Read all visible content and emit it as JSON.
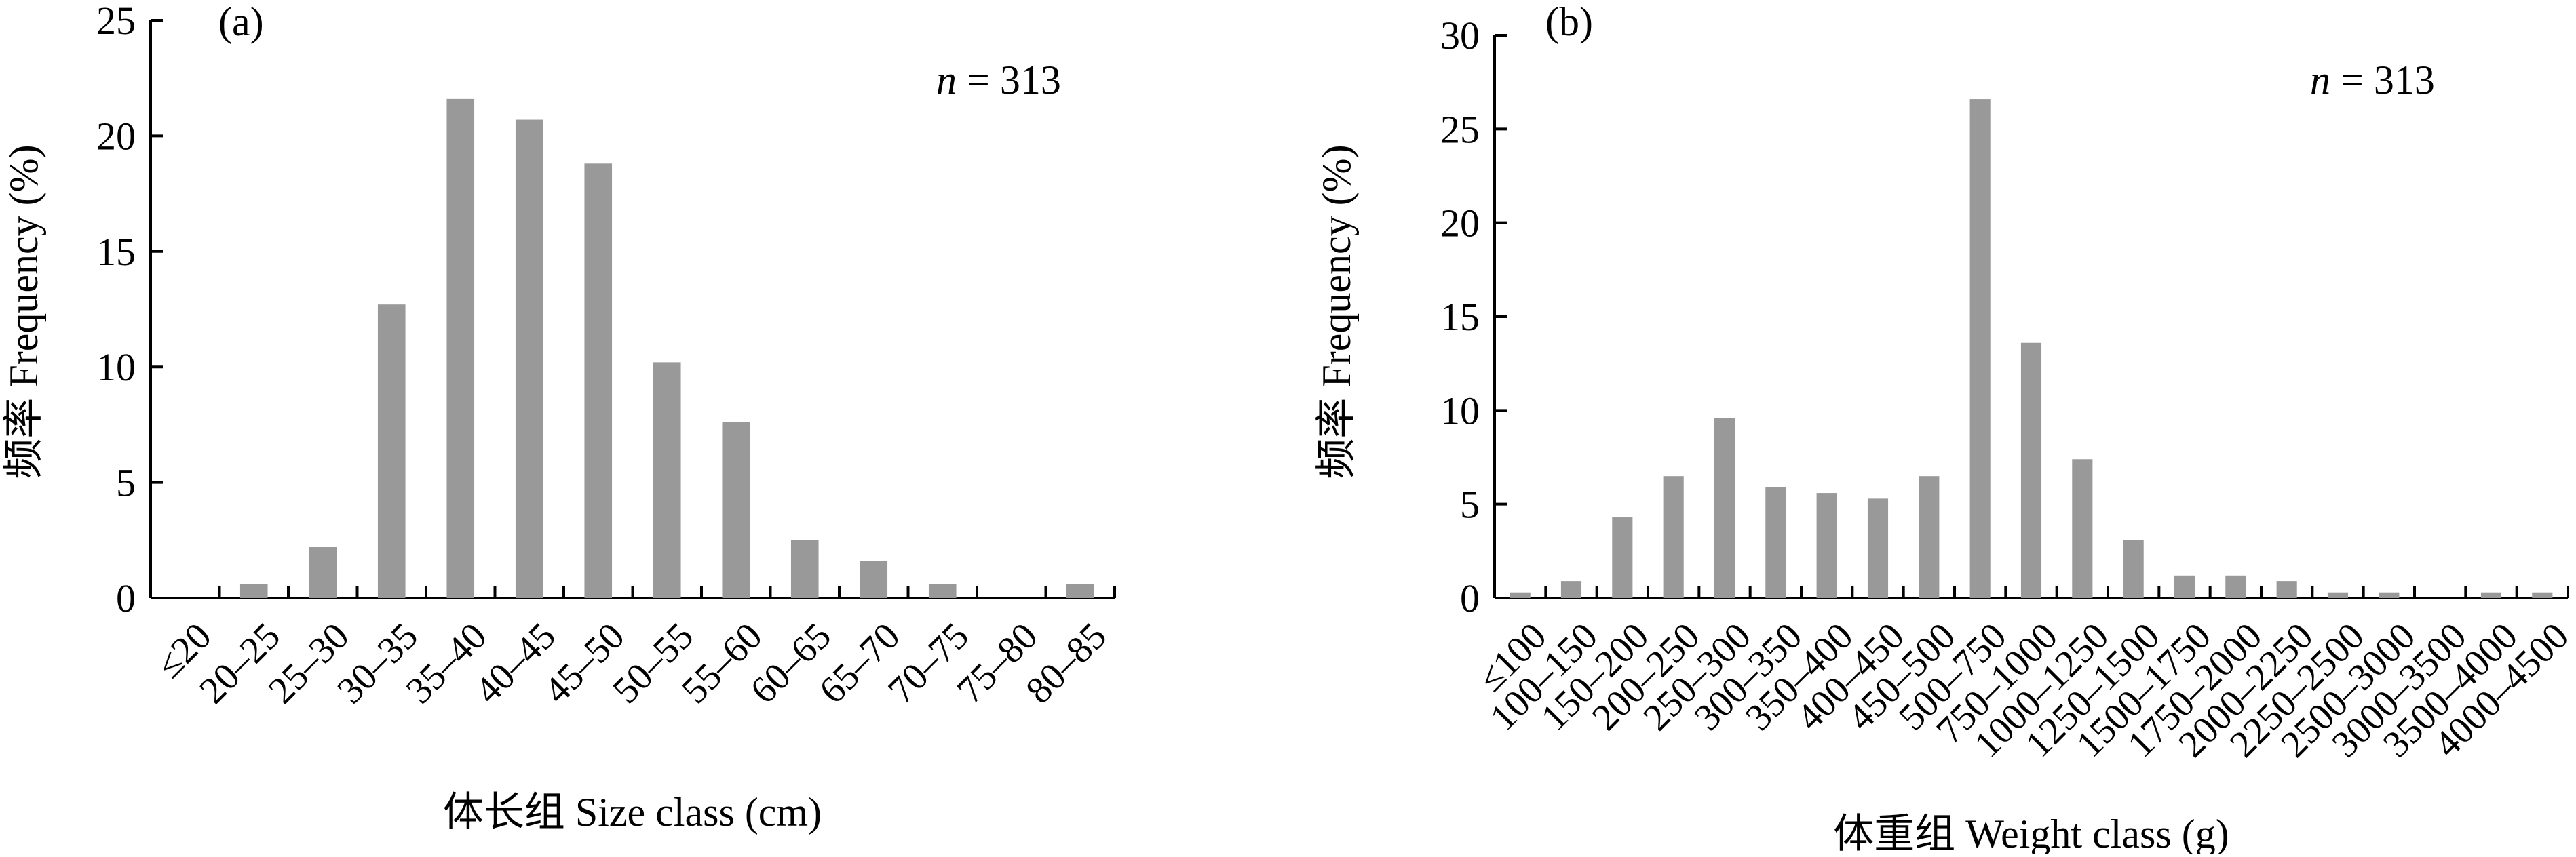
{
  "chart_data": [
    {
      "type": "bar",
      "panel_label": "(a)",
      "annotation": "n = 313",
      "ylabel": "频率 Frequency (%)",
      "xlabel": "体长组 Size class (cm)",
      "ylim": [
        0,
        25
      ],
      "yticks": [
        0,
        5,
        10,
        15,
        20,
        25
      ],
      "categories": [
        "≤20",
        "20–25",
        "25–30",
        "30–35",
        "35–40",
        "40–45",
        "45–50",
        "50–55",
        "55–60",
        "60–65",
        "65–70",
        "70–75",
        "75–80",
        "80–85"
      ],
      "values": [
        0,
        0.6,
        2.2,
        12.7,
        21.6,
        20.7,
        18.8,
        10.2,
        7.6,
        2.5,
        1.6,
        0.6,
        0,
        0.6
      ],
      "bar_color": "#999999",
      "grid": false
    },
    {
      "type": "bar",
      "panel_label": "(b)",
      "annotation": "n = 313",
      "ylabel": "频率 Frequency (%)",
      "xlabel": "体重组 Weight class (g)",
      "ylim": [
        0,
        30
      ],
      "yticks": [
        0,
        5,
        10,
        15,
        20,
        25,
        30
      ],
      "categories": [
        "≤100",
        "100–150",
        "150–200",
        "200–250",
        "250–300",
        "300–350",
        "350–400",
        "400–450",
        "450–500",
        "500–750",
        "750–1000",
        "1000–1250",
        "1250–1500",
        "1500–1750",
        "1750–2000",
        "2000–2250",
        "2250–2500",
        "2500–3000",
        "3000–3500",
        "3500–4000",
        "4000–4500"
      ],
      "values": [
        0.3,
        0.9,
        4.3,
        6.5,
        9.6,
        5.9,
        5.6,
        5.3,
        6.5,
        26.6,
        13.6,
        7.4,
        3.1,
        1.2,
        1.2,
        0.9,
        0.3,
        0.3,
        0,
        0.3,
        0.3
      ],
      "bar_color": "#999999",
      "grid": false
    }
  ]
}
